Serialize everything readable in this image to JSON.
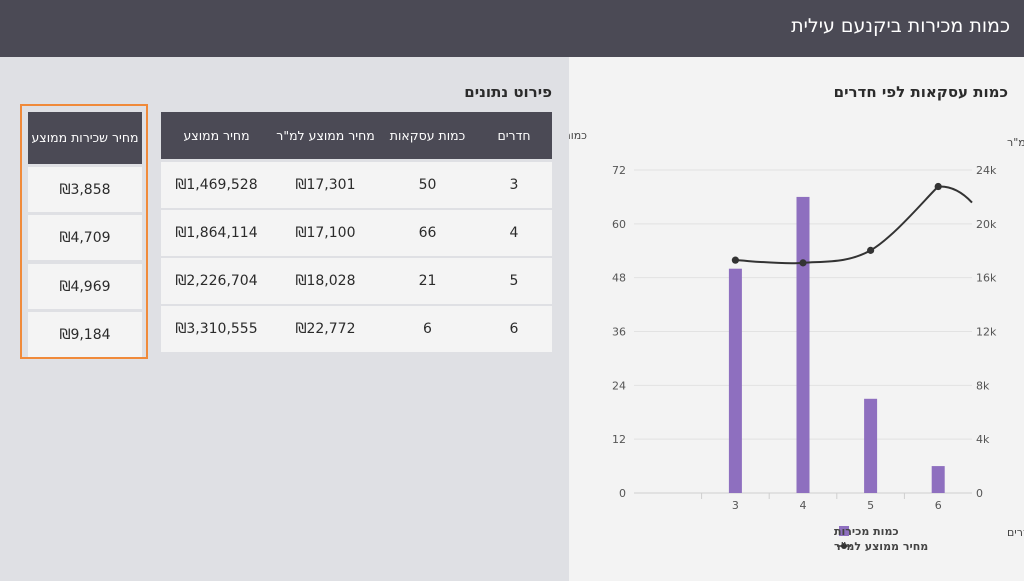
{
  "header": {
    "title": "כמות מכירות ביקנעם עילית"
  },
  "chart_section": {
    "title": "כמות עסקאות לפי חדרים"
  },
  "chart_data": {
    "type": "bar",
    "categories": [
      "3",
      "4",
      "5",
      "6"
    ],
    "series": [
      {
        "name": "כמות מכירות",
        "type": "bar",
        "axis": "right",
        "values": [
          50,
          66,
          21,
          6
        ],
        "color": "#8e6fbf"
      },
      {
        "name": "מחיר ממוצע למ\"ר",
        "type": "line",
        "axis": "left",
        "values": [
          17301,
          17100,
          18028,
          22772
        ],
        "color": "#333333"
      }
    ],
    "y_right": {
      "label": "כמות עסקאות",
      "min": 0,
      "max": 72,
      "ticks": [
        "0",
        "12",
        "24",
        "36",
        "48",
        "60",
        "72"
      ]
    },
    "y_left": {
      "label": "מחיר ממוצע למ\"ר",
      "min": 0,
      "max": 24000,
      "ticks": [
        "0",
        "4k",
        "8k",
        "12k",
        "16k",
        "20k",
        "24k"
      ]
    },
    "xlabel": "חדרים",
    "legend_position": "bottom"
  },
  "details": {
    "title": "פירוט נתונים",
    "columns": [
      "חדרים",
      "כמות עסקאות",
      "מחיר ממוצע למ\"ר",
      "מחיר ממוצע"
    ],
    "rows": [
      [
        "3",
        "50",
        "₪17,301",
        "₪1,469,528"
      ],
      [
        "4",
        "66",
        "₪17,100",
        "₪1,864,114"
      ],
      [
        "5",
        "21",
        "₪18,028",
        "₪2,226,704"
      ],
      [
        "6",
        "6",
        "₪22,772",
        "₪3,310,555"
      ]
    ]
  },
  "rent": {
    "header": "מחיר שכירות ממוצע",
    "values": [
      "₪3,858",
      "₪4,709",
      "₪4,969",
      "₪9,184"
    ]
  }
}
